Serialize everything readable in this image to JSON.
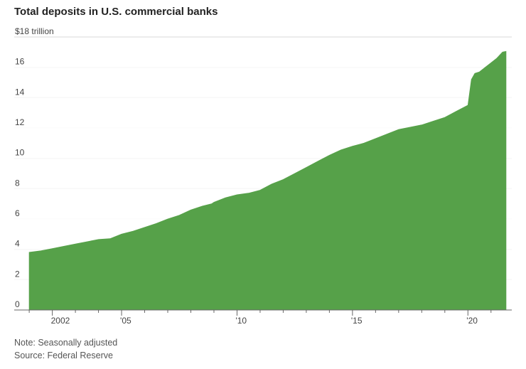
{
  "title": "Total deposits in U.S. commercial banks",
  "notes": {
    "note": "Note: Seasonally adjusted",
    "source": "Source: Federal Reserve"
  },
  "chart_data": {
    "type": "area",
    "title": "Total deposits in U.S. commercial banks",
    "xlabel": "",
    "ylabel": "",
    "ylim": [
      0,
      18
    ],
    "xlim": [
      2000.35,
      2021.9
    ],
    "grid": true,
    "legend": "none",
    "color": "#56a149",
    "y_ticks": [
      {
        "value": 18,
        "label": "$18 trillion"
      },
      {
        "value": 16,
        "label": "16"
      },
      {
        "value": 14,
        "label": "14"
      },
      {
        "value": 12,
        "label": "12"
      },
      {
        "value": 10,
        "label": "10"
      },
      {
        "value": 8,
        "label": "8"
      },
      {
        "value": 6,
        "label": "6"
      },
      {
        "value": 4,
        "label": "4"
      },
      {
        "value": 2,
        "label": "2"
      },
      {
        "value": 0,
        "label": "0"
      }
    ],
    "x_ticks": [
      {
        "value": 2002,
        "label": "2002"
      },
      {
        "value": 2005,
        "label": "'05"
      },
      {
        "value": 2010,
        "label": "'10"
      },
      {
        "value": 2015,
        "label": "'15"
      },
      {
        "value": 2020,
        "label": "'20"
      }
    ],
    "x_minor_ticks": [
      2001,
      2003,
      2004,
      2006,
      2007,
      2008,
      2009,
      2011,
      2012,
      2013,
      2014,
      2016,
      2017,
      2018,
      2019,
      2021
    ],
    "series": [
      {
        "x": [
          2001.0,
          2001.5,
          2002.0,
          2002.5,
          2003.0,
          2003.5,
          2004.0,
          2004.5,
          2005.0,
          2005.5,
          2006.0,
          2006.5,
          2007.0,
          2007.5,
          2008.0,
          2008.5,
          2008.9,
          2009.0,
          2009.5,
          2010.0,
          2010.5,
          2011.0,
          2011.5,
          2012.0,
          2012.5,
          2013.0,
          2013.5,
          2014.0,
          2014.5,
          2015.0,
          2015.5,
          2016.0,
          2016.5,
          2017.0,
          2017.5,
          2018.0,
          2018.5,
          2019.0,
          2019.5,
          2020.0,
          2020.15,
          2020.3,
          2020.5,
          2020.75,
          2021.0,
          2021.25,
          2021.5,
          2021.65
        ],
        "values": [
          3.8,
          3.9,
          4.05,
          4.2,
          4.35,
          4.5,
          4.65,
          4.7,
          5.0,
          5.2,
          5.45,
          5.7,
          6.0,
          6.25,
          6.6,
          6.85,
          7.0,
          7.1,
          7.4,
          7.6,
          7.7,
          7.9,
          8.3,
          8.6,
          9.0,
          9.4,
          9.8,
          10.2,
          10.55,
          10.8,
          11.0,
          11.3,
          11.6,
          11.9,
          12.05,
          12.2,
          12.45,
          12.7,
          13.1,
          13.5,
          15.2,
          15.6,
          15.7,
          16.0,
          16.3,
          16.6,
          17.0,
          17.05
        ]
      }
    ]
  }
}
